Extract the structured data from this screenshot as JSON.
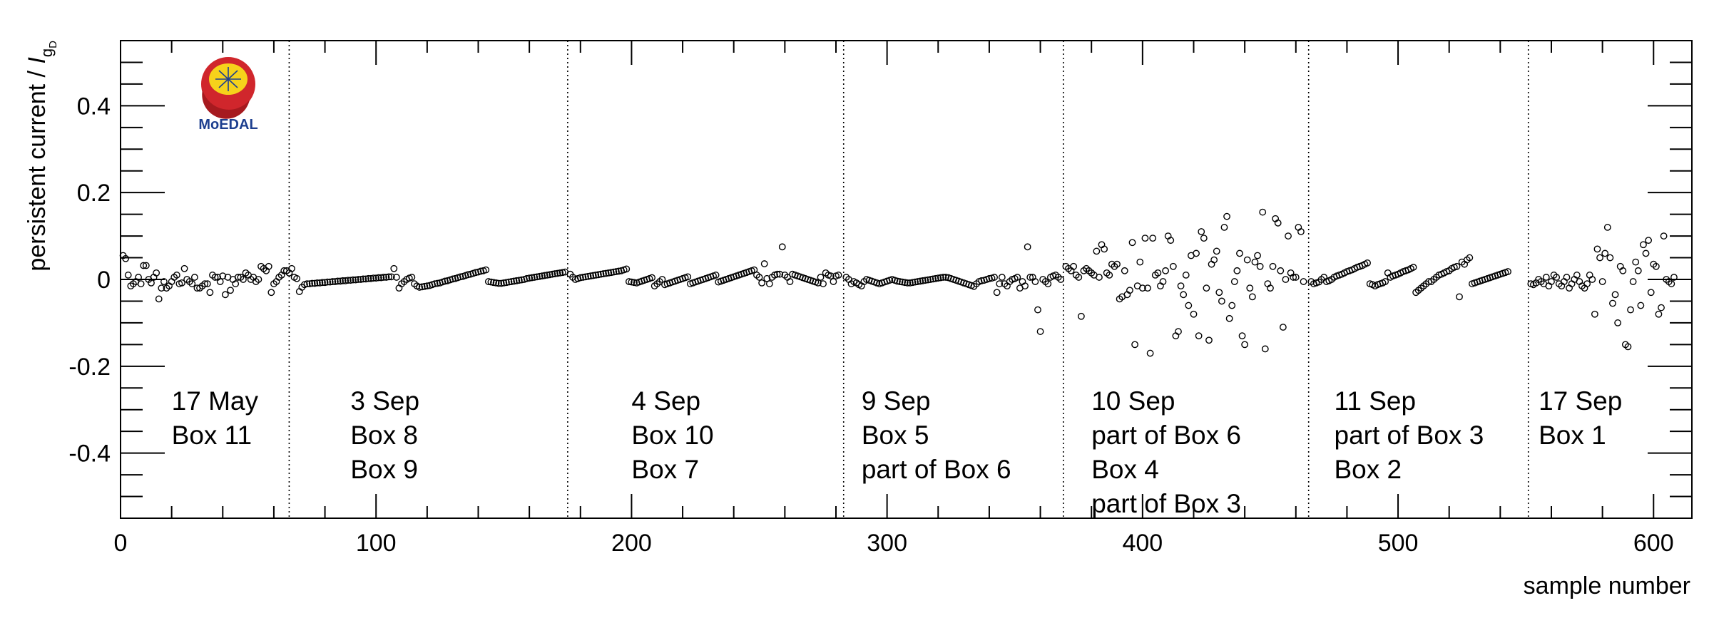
{
  "chart_data": {
    "type": "scatter",
    "xlabel": "sample number",
    "ylabel_main": "persistent current / ",
    "ylabel_symbol": "I",
    "ylabel_sub": "g",
    "ylabel_subsub": "D",
    "xlim": [
      0,
      615
    ],
    "ylim": [
      -0.55,
      0.55
    ],
    "x_ticks": [
      0,
      100,
      200,
      300,
      400,
      500,
      600
    ],
    "x_tick_labels": [
      "0",
      "100",
      "200",
      "300",
      "400",
      "500",
      "600"
    ],
    "y_ticks": [
      -0.4,
      -0.2,
      0,
      0.2,
      0.4
    ],
    "y_tick_labels": [
      "-0.4",
      "-0.2",
      "0",
      "0.2",
      "0.4"
    ],
    "grid": false,
    "marker": "open-circle",
    "dividers": [
      66,
      175,
      283,
      369,
      465,
      551
    ],
    "annotations": [
      {
        "x": 20,
        "lines": [
          "17 May",
          "Box 11"
        ]
      },
      {
        "x": 90,
        "lines": [
          "3 Sep",
          "Box 8",
          "Box 9"
        ]
      },
      {
        "x": 200,
        "lines": [
          "4 Sep",
          "Box 10",
          "Box 7"
        ]
      },
      {
        "x": 290,
        "lines": [
          "9 Sep",
          "Box 5",
          "part of Box 6"
        ]
      },
      {
        "x": 380,
        "lines": [
          "10 Sep",
          "part of Box 6",
          "Box 4",
          "part of Box 3"
        ]
      },
      {
        "x": 475,
        "lines": [
          "11 Sep",
          "part of Box 3",
          "Box 2"
        ]
      },
      {
        "x": 555,
        "lines": [
          "17 Sep",
          "Box 1"
        ]
      }
    ],
    "segments": [
      {
        "x_start": 1,
        "values": [
          0.055,
          0.048,
          0.01,
          -0.015,
          -0.01,
          -0.005,
          0.005,
          -0.01,
          0.032,
          0.032,
          0.0,
          -0.008,
          0.005,
          0.015,
          -0.045,
          -0.02,
          -0.005,
          -0.02,
          -0.015,
          -0.005,
          0.005,
          0.01,
          -0.01,
          -0.008,
          0.025,
          0.0,
          -0.005,
          -0.01,
          0.005,
          -0.02,
          -0.02,
          -0.015,
          -0.01,
          -0.01,
          -0.03,
          0.01,
          0.005,
          0.005,
          -0.005,
          0.008,
          -0.035,
          0.005,
          -0.025,
          0.0,
          -0.01,
          0.005,
          0.005,
          0.0,
          0.015,
          0.01,
          0.0,
          0.005,
          -0.005,
          0.0,
          0.03,
          0.025,
          0.02,
          0.03,
          -0.03,
          -0.01,
          -0.005,
          0.005,
          0.01,
          0.02,
          0.02,
          0.015
        ]
      },
      {
        "x_start": 67,
        "values": [
          0.025,
          0.005,
          0.002,
          -0.028,
          -0.018,
          -0.012,
          -0.01,
          -0.01,
          -0.009,
          -0.009,
          -0.008,
          -0.008,
          -0.007,
          -0.007,
          -0.006,
          -0.006,
          -0.005,
          -0.005,
          -0.004,
          -0.004,
          -0.003,
          -0.003,
          -0.002,
          -0.002,
          -0.001,
          -0.001,
          0.0,
          0.0,
          0.001,
          0.001,
          0.002,
          0.002,
          0.003,
          0.003,
          0.004,
          0.004,
          0.005,
          0.005,
          0.006,
          0.006,
          0.025,
          0.005,
          -0.02,
          -0.01,
          -0.005,
          0.0,
          0.003,
          0.005,
          -0.01,
          -0.015,
          -0.018,
          -0.017,
          -0.016,
          -0.015,
          -0.014,
          -0.012,
          -0.01,
          -0.009,
          -0.008,
          -0.006,
          -0.004,
          -0.003,
          -0.001,
          0.001,
          0.002,
          0.004,
          0.006,
          0.007,
          0.009,
          0.011,
          0.012,
          0.014,
          0.016,
          0.017,
          0.019,
          0.02,
          0.022,
          -0.005,
          -0.006,
          -0.007,
          -0.008,
          -0.009,
          -0.009,
          -0.008,
          -0.007,
          -0.006,
          -0.005,
          -0.004,
          -0.003,
          -0.002,
          -0.001,
          0.0,
          0.002,
          0.003,
          0.004,
          0.005,
          0.006,
          0.007,
          0.008,
          0.009,
          0.01,
          0.011,
          0.012,
          0.013,
          0.014,
          0.015,
          0.016,
          0.017
        ]
      },
      {
        "x_start": 176,
        "values": [
          0.012,
          0.005,
          0.0,
          0.002,
          0.004,
          0.005,
          0.006,
          0.007,
          0.008,
          0.009,
          0.01,
          0.011,
          0.012,
          0.013,
          0.014,
          0.015,
          0.016,
          0.017,
          0.018,
          0.019,
          0.02,
          0.022,
          0.024,
          -0.005,
          -0.006,
          -0.007,
          -0.008,
          -0.006,
          -0.004,
          -0.002,
          0.0,
          0.002,
          0.004,
          -0.015,
          -0.01,
          -0.005,
          0.0,
          -0.012,
          -0.01,
          -0.008,
          -0.006,
          -0.004,
          -0.002,
          0.0,
          0.002,
          0.004,
          0.006,
          -0.01,
          -0.008,
          -0.006,
          -0.004,
          -0.002,
          0.0,
          0.002,
          0.004,
          0.006,
          0.008,
          0.01,
          -0.006,
          -0.004,
          -0.002,
          0.0,
          0.002,
          0.004,
          0.006,
          0.008,
          0.01,
          0.012,
          0.014,
          0.016,
          0.018,
          0.02,
          0.022,
          0.01,
          0.005,
          -0.008,
          0.036,
          0.002,
          -0.01,
          0.005,
          0.01,
          0.012,
          0.012,
          0.075,
          0.01,
          0.005,
          -0.005,
          0.012,
          0.01,
          0.008,
          0.006,
          0.004,
          0.002,
          0.0,
          -0.002,
          -0.004,
          -0.006,
          -0.008,
          0.005,
          -0.01,
          0.015,
          0.01,
          0.008,
          -0.005,
          0.008,
          0.01
        ]
      },
      {
        "x_start": 284,
        "values": [
          0.005,
          0.0,
          -0.01,
          -0.005,
          -0.008,
          -0.012,
          -0.015,
          -0.005,
          0.0,
          -0.002,
          -0.004,
          -0.006,
          -0.008,
          -0.01,
          -0.008,
          -0.006,
          -0.004,
          -0.002,
          0.0,
          -0.002,
          -0.004,
          -0.005,
          -0.006,
          -0.007,
          -0.008,
          -0.008,
          -0.007,
          -0.006,
          -0.005,
          -0.004,
          -0.003,
          -0.002,
          -0.001,
          0.0,
          0.001,
          0.002,
          0.003,
          0.004,
          0.005,
          0.005,
          0.004,
          0.002,
          0.0,
          -0.002,
          -0.004,
          -0.006,
          -0.008,
          -0.01,
          -0.012,
          -0.014,
          -0.016,
          -0.01,
          -0.005,
          -0.003,
          -0.002,
          0.0,
          0.002,
          0.003,
          0.005,
          -0.03,
          -0.01,
          0.005,
          -0.01,
          -0.015,
          -0.005,
          0.0,
          0.002,
          0.005,
          -0.02,
          -0.005,
          -0.015,
          0.075,
          0.005,
          0.005,
          -0.005,
          -0.07,
          -0.12,
          0.0,
          -0.005,
          -0.01,
          0.005,
          0.008,
          0.01,
          0.005,
          0.0
        ]
      },
      {
        "x_start": 370,
        "values": [
          0.03,
          0.025,
          0.02,
          0.03,
          0.01,
          0.005,
          -0.085,
          0.02,
          0.025,
          0.02,
          0.015,
          0.01,
          0.065,
          0.005,
          0.08,
          0.07,
          0.015,
          0.01,
          0.035,
          0.03,
          0.035,
          -0.045,
          -0.04,
          0.02,
          -0.035,
          -0.025,
          0.085,
          -0.15,
          -0.015,
          0.04,
          -0.02,
          0.095,
          -0.02,
          -0.17,
          0.095,
          0.01,
          0.015,
          -0.015,
          -0.005,
          0.02,
          0.1,
          0.09,
          0.03,
          -0.13,
          -0.12,
          -0.015,
          -0.035,
          0.01,
          -0.06,
          0.055,
          -0.08,
          0.06,
          -0.13,
          0.11,
          0.095,
          -0.02,
          -0.14,
          0.035,
          0.045,
          0.065,
          -0.03,
          -0.05,
          0.12,
          0.145,
          -0.09,
          -0.06,
          -0.005,
          0.02,
          0.06,
          -0.13,
          -0.15,
          0.045,
          -0.02,
          -0.04,
          0.04,
          0.055,
          0.03,
          0.155,
          -0.16,
          -0.01,
          -0.02,
          0.03,
          0.14,
          0.13,
          0.02,
          -0.11,
          0.0,
          0.1,
          0.015,
          0.005,
          0.005,
          0.12,
          0.11,
          -0.005
        ]
      },
      {
        "x_start": 466,
        "values": [
          -0.005,
          -0.01,
          -0.008,
          -0.006,
          0.0,
          0.005,
          -0.005,
          -0.003,
          0.0,
          0.005,
          0.008,
          0.01,
          0.012,
          0.015,
          0.018,
          0.02,
          0.022,
          0.025,
          0.028,
          0.03,
          0.032,
          0.035,
          0.038,
          -0.01,
          -0.012,
          -0.015,
          -0.012,
          -0.01,
          -0.008,
          -0.005,
          0.015,
          0.005,
          0.008,
          0.01,
          0.012,
          0.015,
          0.018,
          0.02,
          0.022,
          0.025,
          0.028,
          -0.03,
          -0.025,
          -0.02,
          -0.015,
          -0.01,
          -0.005,
          -0.005,
          0.0,
          0.005,
          0.01,
          0.012,
          0.015,
          0.018,
          0.02,
          0.025,
          0.028,
          0.03,
          -0.04,
          0.04,
          0.035,
          0.045,
          0.05,
          -0.01,
          -0.008,
          -0.006,
          -0.004,
          -0.002,
          0.0,
          0.002,
          0.004,
          0.006,
          0.008,
          0.01,
          0.012,
          0.014,
          0.016,
          0.018
        ]
      },
      {
        "x_start": 552,
        "values": [
          -0.01,
          -0.012,
          -0.008,
          0.0,
          -0.005,
          -0.01,
          0.005,
          -0.015,
          -0.005,
          0.01,
          0.005,
          -0.01,
          -0.015,
          -0.005,
          0.005,
          -0.02,
          -0.01,
          0.0,
          0.01,
          -0.005,
          -0.015,
          -0.02,
          -0.01,
          0.01,
          0.0,
          -0.08,
          0.07,
          0.05,
          -0.005,
          0.06,
          0.12,
          0.05,
          -0.055,
          -0.035,
          -0.1,
          0.03,
          0.02,
          -0.15,
          -0.155,
          -0.07,
          -0.005,
          0.04,
          0.02,
          -0.06,
          0.08,
          0.06,
          0.09,
          -0.03,
          0.035,
          0.03,
          -0.08,
          -0.065,
          0.1,
          0.0,
          -0.005,
          -0.01,
          0.005
        ]
      }
    ],
    "logo": {
      "text": "MoEDAL"
    }
  }
}
